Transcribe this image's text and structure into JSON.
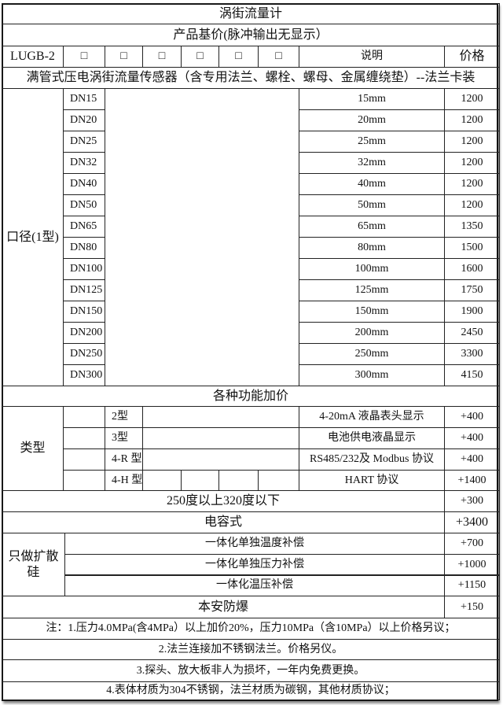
{
  "title": "涡街流量计",
  "subtitle": "产品基价(脉冲输出无显示）",
  "header_row": {
    "model": "LUGB-2",
    "checkboxes": [
      "□",
      "□",
      "□",
      "□",
      "□",
      "□"
    ],
    "desc_label": "说明",
    "price_label": "价格"
  },
  "sensor_desc": "满管式压电涡街流量传感器（含专用法兰、螺栓、螺母、金属缠绕垫）--法兰卡装",
  "caliber": {
    "label": "口径(1型)",
    "rows": [
      {
        "dn": "DN15",
        "desc": "15mm",
        "price": "1200"
      },
      {
        "dn": "DN20",
        "desc": "20mm",
        "price": "1200"
      },
      {
        "dn": "DN25",
        "desc": "25mm",
        "price": "1200"
      },
      {
        "dn": "DN32",
        "desc": "32mm",
        "price": "1200"
      },
      {
        "dn": "DN40",
        "desc": "40mm",
        "price": "1200"
      },
      {
        "dn": "DN50",
        "desc": "50mm",
        "price": "1200"
      },
      {
        "dn": "DN65",
        "desc": "65mm",
        "price": "1350"
      },
      {
        "dn": "DN80",
        "desc": "80mm",
        "price": "1500"
      },
      {
        "dn": "DN100",
        "desc": "100mm",
        "price": "1600"
      },
      {
        "dn": "DN125",
        "desc": "125mm",
        "price": "1750"
      },
      {
        "dn": "DN150",
        "desc": "150mm",
        "price": "1900"
      },
      {
        "dn": "DN200",
        "desc": "200mm",
        "price": "2450"
      },
      {
        "dn": "DN250",
        "desc": "250mm",
        "price": "3300"
      },
      {
        "dn": "DN300",
        "desc": "300mm",
        "price": "4150"
      }
    ]
  },
  "options_title": "各种功能加价",
  "types": {
    "label": "类型",
    "rows": [
      {
        "type": "2型",
        "desc": "4-20mA  液晶表头显示",
        "price": "+400"
      },
      {
        "type": "3型",
        "desc": "电池供电液晶显示",
        "price": "+400"
      },
      {
        "type": "4-R 型",
        "desc": "RS485/232及 Modbus 协议",
        "price": "+400"
      },
      {
        "type": "4-H 型",
        "desc": "HART 协议",
        "price": "+1400"
      }
    ]
  },
  "high_temp": {
    "desc": "250度以上320度以下",
    "price": "+300"
  },
  "capacitive": {
    "desc": "电容式",
    "price": "+3400"
  },
  "diffused_silicon": {
    "label": "只做扩散硅",
    "rows": [
      {
        "desc": "一体化单独温度补偿",
        "price": "+700"
      },
      {
        "desc": "一体化单独压力补偿",
        "price": "+1000"
      },
      {
        "desc": "一体化温压补偿",
        "price": "+1150"
      }
    ]
  },
  "explosion_proof": {
    "desc": "本安防爆",
    "price": "+150"
  },
  "notes": [
    "注：1.压力4.0MPa(含4MPa）以上加价20%，压力10MPa（含10MPa）以上价格另议；",
    "2.法兰连接加不锈钢法兰。价格另仪。",
    "3.探头、放大板非人为损坏，一年内免费更换。",
    "4.表体材质为304不锈钢，法兰材质为碳钢，其他材质协议；"
  ]
}
